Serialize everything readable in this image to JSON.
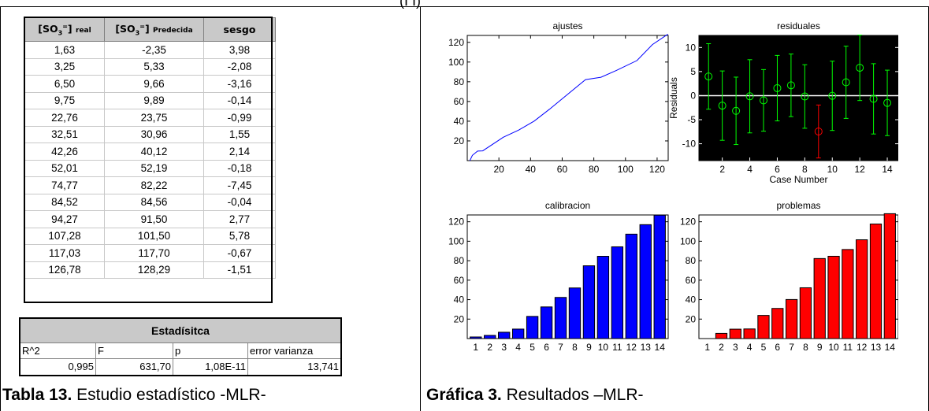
{
  "header_fragment": "(I I)",
  "table": {
    "headers": {
      "real_html": "real",
      "pred": "Predecida",
      "bias": "sesgo",
      "so": "[SO",
      "sub": "3",
      "sup": "=",
      "close": "]"
    },
    "rows": [
      [
        "1,63",
        "-2,35",
        "3,98"
      ],
      [
        "3,25",
        "5,33",
        "-2,08"
      ],
      [
        "6,50",
        "9,66",
        "-3,16"
      ],
      [
        "9,75",
        "9,89",
        "-0,14"
      ],
      [
        "22,76",
        "23,75",
        "-0,99"
      ],
      [
        "32,51",
        "30,96",
        "1,55"
      ],
      [
        "42,26",
        "40,12",
        "2,14"
      ],
      [
        "52,01",
        "52,19",
        "-0,18"
      ],
      [
        "74,77",
        "82,22",
        "-7,45"
      ],
      [
        "84,52",
        "84,56",
        "-0,04"
      ],
      [
        "94,27",
        "91,50",
        "2,77"
      ],
      [
        "107,28",
        "101,50",
        "5,78"
      ],
      [
        "117,03",
        "117,70",
        "-0,67"
      ],
      [
        "126,78",
        "128,29",
        "-1,51"
      ]
    ]
  },
  "stats": {
    "title": "Estadísitca",
    "labels": [
      "R^2",
      "F",
      "p",
      "error varianza"
    ],
    "values": [
      "0,995",
      "631,70",
      "1,08E-11",
      "13,741"
    ]
  },
  "captions": {
    "table_bold": "Tabla 13.",
    "table_rest": " Estudio estadístico -MLR-",
    "figure_bold": "Gráfica 3.",
    "figure_rest": " Resultados –MLR-"
  },
  "chart_data": [
    {
      "type": "line",
      "title": "ajustes",
      "x": [
        1.63,
        3.25,
        6.5,
        9.75,
        22.76,
        32.51,
        42.26,
        52.01,
        74.77,
        84.52,
        94.27,
        107.28,
        117.03,
        126.78
      ],
      "y": [
        -2.35,
        5.33,
        9.66,
        9.89,
        23.75,
        30.96,
        40.12,
        52.19,
        82.22,
        84.56,
        91.5,
        101.5,
        117.7,
        128.29
      ],
      "xticks": [
        20,
        40,
        60,
        80,
        100,
        120
      ],
      "yticks": [
        20,
        40,
        60,
        80,
        100,
        120
      ],
      "xlim": [
        0,
        127
      ],
      "ylim": [
        0,
        127
      ],
      "color": "#0000ff"
    },
    {
      "type": "scatter",
      "title": "residuales",
      "xlabel": "Case Number",
      "ylabel": "Residuals",
      "x": [
        1,
        2,
        3,
        4,
        5,
        6,
        7,
        8,
        9,
        10,
        11,
        12,
        13,
        14
      ],
      "y": [
        3.98,
        -2.08,
        -3.16,
        -0.14,
        -0.99,
        1.55,
        2.14,
        -0.18,
        -7.45,
        -0.04,
        2.77,
        5.78,
        -0.67,
        -1.51
      ],
      "err": [
        6.8,
        7.2,
        7.0,
        7.6,
        6.4,
        6.8,
        6.5,
        6.6,
        5.5,
        7.2,
        7.5,
        6.8,
        7.3,
        6.8
      ],
      "outlier_index": 8,
      "xticks": [
        2,
        4,
        6,
        8,
        10,
        12,
        14
      ],
      "yticks": [
        -10,
        -5,
        0,
        5,
        10
      ],
      "xlim": [
        0.3,
        14.8
      ],
      "ylim": [
        -13.5,
        12.5
      ],
      "background": "#000000",
      "color": "#00ff00",
      "outlier_color": "#ff0000"
    },
    {
      "type": "bar",
      "title": "calibracion",
      "categories": [
        "1",
        "2",
        "3",
        "4",
        "5",
        "6",
        "7",
        "8",
        "9",
        "10",
        "11",
        "12",
        "13",
        "14"
      ],
      "values": [
        1.63,
        3.25,
        6.5,
        9.75,
        22.76,
        32.51,
        42.26,
        52.01,
        74.77,
        84.52,
        94.27,
        107.28,
        117.03,
        126.78
      ],
      "yticks": [
        20,
        40,
        60,
        80,
        100,
        120
      ],
      "ylim": [
        0,
        127
      ],
      "color": "#0000ff"
    },
    {
      "type": "bar",
      "title": "problemas",
      "categories": [
        "1",
        "2",
        "3",
        "4",
        "5",
        "6",
        "7",
        "8",
        "9",
        "10",
        "11",
        "12",
        "13",
        "14"
      ],
      "values": [
        1.63,
        3.25,
        6.5,
        9.75,
        22.76,
        32.51,
        42.26,
        52.01,
        74.77,
        84.52,
        94.27,
        107.28,
        117.03,
        126.78
      ],
      "bar_values": [
        -2.35,
        5.33,
        9.66,
        9.89,
        23.75,
        30.96,
        40.12,
        52.19,
        82.22,
        84.56,
        91.5,
        101.5,
        117.7,
        128.29
      ],
      "yticks": [
        20,
        40,
        60,
        80,
        100,
        120
      ],
      "ylim": [
        0,
        127
      ],
      "color": "#ff0000"
    }
  ]
}
